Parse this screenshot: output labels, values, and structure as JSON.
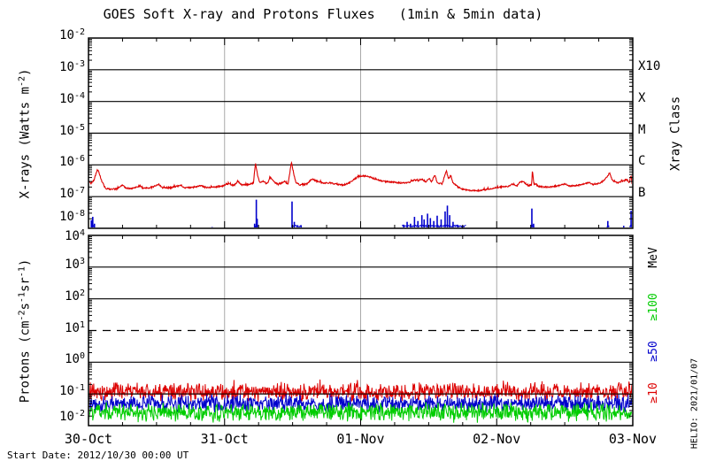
{
  "title": "GOES Soft X-ray and Protons Fluxes   (1min & 5min data)",
  "start_date": "Start Date: 2012/10/30 00:00 UT",
  "credit": "HELIO: 2021/01/07",
  "colors": {
    "xray_long": "#dd0000",
    "xray_short": "#0000cc",
    "p10": "#dd0000",
    "p50": "#0000cc",
    "p100": "#00cc00",
    "grid_day": "#a9a9a9",
    "frame": "#000000",
    "background": "#ffffff"
  },
  "x_axis": {
    "tick_labels": [
      "30-Oct",
      "31-Oct",
      "01-Nov",
      "02-Nov",
      "03-Nov"
    ],
    "range_hours": [
      0,
      96
    ],
    "minor_tick_hours": 6,
    "major_tick_hours": 24
  },
  "chart_data": [
    {
      "type": "line",
      "name": "xray-panel",
      "ylabel_parts": [
        {
          "t": "X-rays (Watts m"
        },
        {
          "t": "-2",
          "sup": true
        },
        {
          "t": ")"
        }
      ],
      "right_axis_label": "Xray Class",
      "y_log_range": [
        -8,
        -2
      ],
      "y_tick_exponents": [
        -2,
        -3,
        -4,
        -5,
        -6,
        -7,
        -8
      ],
      "right_labels": [
        {
          "text": "X10",
          "log": -3,
          "color_key": "frame"
        },
        {
          "text": "X",
          "log": -4,
          "color_key": "frame"
        },
        {
          "text": "M",
          "log": -5,
          "color_key": "frame"
        },
        {
          "text": "C",
          "log": -6,
          "color_key": "frame"
        },
        {
          "text": "B",
          "log": -7,
          "color_key": "frame"
        }
      ],
      "grid_days_hours": [
        24,
        48,
        72
      ],
      "series": [
        {
          "name": "xray-long-flux",
          "render": "points",
          "color_key": "xray_long",
          "width": 1.1,
          "n": 1300,
          "jitter_log": 0.022,
          "seed": 501,
          "points": [
            [
              0,
              3.2e-07
            ],
            [
              0.5,
              2.6e-07
            ],
            [
              1.0,
              3.4e-07
            ],
            [
              1.5,
              6.8e-07
            ],
            [
              1.8,
              6.2e-07
            ],
            [
              2.3,
              3.2e-07
            ],
            [
              3.0,
              1.8e-07
            ],
            [
              4.0,
              1.7e-07
            ],
            [
              5.0,
              1.75e-07
            ],
            [
              6.0,
              2.3e-07
            ],
            [
              6.6,
              1.85e-07
            ],
            [
              7.5,
              1.8e-07
            ],
            [
              9.0,
              2.15e-07
            ],
            [
              9.6,
              1.85e-07
            ],
            [
              11.0,
              1.9e-07
            ],
            [
              12.4,
              2.4e-07
            ],
            [
              13.0,
              1.9e-07
            ],
            [
              14.5,
              1.9e-07
            ],
            [
              16.3,
              2.3e-07
            ],
            [
              17.0,
              1.9e-07
            ],
            [
              18.5,
              1.95e-07
            ],
            [
              19.8,
              2.2e-07
            ],
            [
              20.6,
              1.95e-07
            ],
            [
              22.0,
              1.95e-07
            ],
            [
              23.5,
              2.1e-07
            ],
            [
              24.8,
              2.6e-07
            ],
            [
              25.6,
              2.2e-07
            ],
            [
              26.4,
              3e-07
            ],
            [
              27.0,
              2.35e-07
            ],
            [
              28.2,
              2.4e-07
            ],
            [
              29.1,
              2.7e-07
            ],
            [
              29.45,
              1.2e-06
            ],
            [
              29.8,
              5e-07
            ],
            [
              30.2,
              2.8e-07
            ],
            [
              30.8,
              3.1e-07
            ],
            [
              31.5,
              2.5e-07
            ],
            [
              32.1,
              4.1e-07
            ],
            [
              32.7,
              2.9e-07
            ],
            [
              33.5,
              2.4e-07
            ],
            [
              34.6,
              3e-07
            ],
            [
              35.2,
              2.5e-07
            ],
            [
              35.8,
              1.25e-06
            ],
            [
              36.1,
              6e-07
            ],
            [
              36.6,
              2.8e-07
            ],
            [
              37.4,
              2.3e-07
            ],
            [
              38.5,
              2.5e-07
            ],
            [
              39.4,
              3.6e-07
            ],
            [
              40.2,
              3.1e-07
            ],
            [
              41.2,
              2.7e-07
            ],
            [
              42.5,
              2.7e-07
            ],
            [
              43.8,
              2.5e-07
            ],
            [
              44.8,
              2.3e-07
            ],
            [
              45.8,
              2.6e-07
            ],
            [
              46.8,
              3.5e-07
            ],
            [
              47.8,
              4.4e-07
            ],
            [
              48.8,
              4.5e-07
            ],
            [
              49.6,
              4.1e-07
            ],
            [
              50.4,
              3.7e-07
            ],
            [
              51.2,
              3.3e-07
            ],
            [
              52.2,
              3e-07
            ],
            [
              53.4,
              2.9e-07
            ],
            [
              54.6,
              2.75e-07
            ],
            [
              55.8,
              2.7e-07
            ],
            [
              56.8,
              2.9e-07
            ],
            [
              57.5,
              3.4e-07
            ],
            [
              58.2,
              3.1e-07
            ],
            [
              58.9,
              3.5e-07
            ],
            [
              59.5,
              2.9e-07
            ],
            [
              60.1,
              3.7e-07
            ],
            [
              60.5,
              2.9e-07
            ],
            [
              61.1,
              4.8e-07
            ],
            [
              61.5,
              2.7e-07
            ],
            [
              62.4,
              2.5e-07
            ],
            [
              63.1,
              6.6e-07
            ],
            [
              63.5,
              3.6e-07
            ],
            [
              63.9,
              4.6e-07
            ],
            [
              64.3,
              2.7e-07
            ],
            [
              65.2,
              2e-07
            ],
            [
              66.2,
              1.65e-07
            ],
            [
              67.5,
              1.55e-07
            ],
            [
              69.0,
              1.55e-07
            ],
            [
              70.5,
              1.7e-07
            ],
            [
              71.8,
              1.9e-07
            ],
            [
              73.0,
              2.05e-07
            ],
            [
              74.0,
              2.1e-07
            ],
            [
              74.8,
              2.5e-07
            ],
            [
              75.6,
              2.2e-07
            ],
            [
              76.2,
              3e-07
            ],
            [
              76.8,
              2.9e-07
            ],
            [
              77.5,
              2.2e-07
            ],
            [
              78.15,
              2.3e-07
            ],
            [
              78.3,
              7e-07
            ],
            [
              78.55,
              2.6e-07
            ],
            [
              79.5,
              2.05e-07
            ],
            [
              81.0,
              2e-07
            ],
            [
              82.5,
              2.1e-07
            ],
            [
              84.0,
              2.5e-07
            ],
            [
              84.8,
              2.15e-07
            ],
            [
              86.0,
              2.25e-07
            ],
            [
              87.2,
              2.4e-07
            ],
            [
              88.2,
              2.8e-07
            ],
            [
              89.0,
              2.45e-07
            ],
            [
              90.0,
              2.6e-07
            ],
            [
              90.8,
              3.1e-07
            ],
            [
              91.5,
              4.3e-07
            ],
            [
              91.9,
              5.6e-07
            ],
            [
              92.4,
              3.3e-07
            ],
            [
              93.2,
              2.7e-07
            ],
            [
              93.8,
              2.9e-07
            ],
            [
              94.5,
              3.1e-07
            ],
            [
              95.0,
              3.4e-07
            ],
            [
              95.4,
              2.8e-07
            ],
            [
              95.7,
              4.6e-07
            ],
            [
              95.85,
              2.6e-07
            ],
            [
              96,
              5e-07
            ]
          ]
        },
        {
          "name": "xray-short-flux",
          "render": "spikes",
          "color_key": "xray_short",
          "width": 1.6,
          "floor": 1e-08,
          "seed": 77,
          "spikes": [
            [
              0.5,
              1.8e-08
            ],
            [
              0.75,
              2.3e-08
            ],
            [
              1.05,
              1.4e-08
            ],
            [
              21.8,
              1.1e-08
            ],
            [
              29.3,
              1.4e-08
            ],
            [
              29.6,
              8e-08
            ],
            [
              29.75,
              2e-08
            ],
            [
              35.9,
              7e-08
            ],
            [
              36.3,
              1.6e-08
            ],
            [
              37.5,
              1.2e-08
            ],
            [
              55.6,
              1.3e-08
            ],
            [
              56.2,
              1.6e-08
            ],
            [
              56.8,
              1.4e-08
            ],
            [
              57.5,
              2.3e-08
            ],
            [
              58.1,
              1.7e-08
            ],
            [
              58.8,
              2.6e-08
            ],
            [
              59.2,
              1.9e-08
            ],
            [
              59.8,
              2.9e-08
            ],
            [
              60.3,
              2.1e-08
            ],
            [
              60.9,
              1.7e-08
            ],
            [
              61.5,
              2.5e-08
            ],
            [
              62.2,
              1.9e-08
            ],
            [
              62.9,
              3.4e-08
            ],
            [
              63.3,
              5.2e-08
            ],
            [
              63.7,
              2.6e-08
            ],
            [
              64.3,
              1.6e-08
            ],
            [
              65.1,
              1.3e-08
            ],
            [
              65.9,
              1.2e-08
            ],
            [
              78.2,
              4.2e-08
            ],
            [
              78.5,
              1.4e-08
            ],
            [
              91.6,
              1.7e-08
            ],
            [
              94.4,
              1.2e-08
            ],
            [
              95.7,
              3.6e-08
            ]
          ],
          "floor_runs": [
            [
              0.4,
              1.2
            ],
            [
              29.2,
              30.0
            ],
            [
              35.8,
              37.6
            ],
            [
              55.3,
              66.6
            ],
            [
              78.0,
              78.7
            ],
            [
              91.4,
              92.0
            ],
            [
              95.4,
              96.0
            ]
          ]
        }
      ]
    },
    {
      "type": "line",
      "name": "proton-panel",
      "ylabel_parts": [
        {
          "t": "Protons (cm"
        },
        {
          "t": "-2",
          "sup": true
        },
        {
          "t": "s"
        },
        {
          "t": "-1",
          "sup": true
        },
        {
          "t": "sr"
        },
        {
          "t": "-1",
          "sup": true
        },
        {
          "t": ")"
        }
      ],
      "y_log_range": [
        -2,
        4
      ],
      "y_tick_exponents": [
        4,
        3,
        2,
        1,
        0,
        -1,
        -2
      ],
      "right_labels_vertical": [
        {
          "text": "MeV",
          "log": 3.3,
          "color_key": "frame"
        },
        {
          "text": "≥100",
          "log": 1.73,
          "color_key": "p100"
        },
        {
          "text": "≥50",
          "log": 0.35,
          "color_key": "p50"
        },
        {
          "text": "≥10",
          "log": -0.97,
          "color_key": "p10"
        }
      ],
      "threshold": {
        "log": 1,
        "style": "dashed"
      },
      "grid_days_hours": [
        24,
        48,
        72
      ],
      "series": [
        {
          "name": "protons-ge10-flux",
          "render": "noise",
          "color_key": "p10",
          "baseline": 0.115,
          "log_spread": 0.33,
          "spike_prob": 0.03,
          "spike_amp": 0.13,
          "seed": 911,
          "n": 1152,
          "width": 1.0
        },
        {
          "name": "protons-ge50-flux",
          "render": "noise",
          "color_key": "p50",
          "baseline": 0.05,
          "log_spread": 0.3,
          "spike_prob": 0.02,
          "spike_amp": 0.1,
          "seed": 412,
          "n": 1152,
          "width": 1.0
        },
        {
          "name": "protons-ge100-flux",
          "render": "noise",
          "color_key": "p100",
          "baseline": 0.026,
          "log_spread": 0.34,
          "spike_prob": 0.02,
          "spike_amp": 0.1,
          "seed": 633,
          "n": 1152,
          "width": 1.0
        }
      ]
    }
  ]
}
